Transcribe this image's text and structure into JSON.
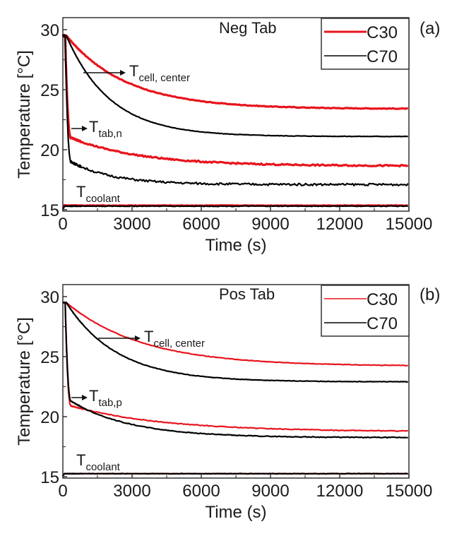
{
  "chart_data": [
    {
      "type": "line",
      "panel_label": "(a)",
      "title": "Neg Tab",
      "xlabel": "Time (s)",
      "ylabel": "Temperature [°C]",
      "xlim": [
        0,
        15000
      ],
      "ylim": [
        15,
        31
      ],
      "x_ticks": [
        0,
        3000,
        6000,
        9000,
        12000,
        15000
      ],
      "x_tick_labels": [
        "0",
        "3000",
        "6000",
        "9000",
        "12000",
        "15000"
      ],
      "y_ticks": [
        15,
        20,
        25,
        30
      ],
      "y_tick_labels": [
        "15",
        "20",
        "25",
        "30"
      ],
      "grid": false,
      "legend": {
        "placement": "top-right",
        "entries": [
          {
            "name": "C30",
            "color": "#e8141c"
          },
          {
            "name": "C70",
            "color": "#000000"
          }
        ]
      },
      "annotations": [
        {
          "text": "T",
          "sub": "cell, center",
          "points_to": "cell center curves"
        },
        {
          "text": "T",
          "sub": "tab,n",
          "points_to": "tab curves"
        },
        {
          "text": "T",
          "sub": "coolant",
          "points_to": "coolant curves"
        }
      ],
      "series": [
        {
          "name": "C30 cell center",
          "legend": "C30",
          "color": "#e8141c",
          "start": 29.5,
          "end": 23.4,
          "tau": 2600,
          "delay": 150,
          "noise": 0.03
        },
        {
          "name": "C70 cell center",
          "legend": "C70",
          "color": "#000000",
          "start": 29.5,
          "end": 21.1,
          "tau": 1900,
          "delay": 150,
          "noise": 0.02
        },
        {
          "name": "C30 tab,n",
          "legend": "C30",
          "color": "#e8141c",
          "start": 29.5,
          "drop_to": 21.0,
          "end": 18.65,
          "tau": 3000,
          "noise": 0.06
        },
        {
          "name": "C70 tab,n",
          "legend": "C70",
          "color": "#000000",
          "start": 29.5,
          "drop_to": 19.0,
          "end": 17.1,
          "tau": 1800,
          "noise": 0.09
        },
        {
          "name": "C30 coolant",
          "legend": "C30",
          "color": "#e8141c",
          "value": 15.35,
          "noise": 0.02
        },
        {
          "name": "C70 coolant",
          "legend": "C70",
          "color": "#000000",
          "value": 15.3,
          "noise": 0.03
        }
      ]
    },
    {
      "type": "line",
      "panel_label": "(b)",
      "title": "Pos Tab",
      "xlabel": "Time (s)",
      "ylabel": "Temperature [°C]",
      "xlim": [
        0,
        15000
      ],
      "ylim": [
        15,
        31
      ],
      "x_ticks": [
        0,
        3000,
        6000,
        9000,
        12000,
        15000
      ],
      "x_tick_labels": [
        "0",
        "3000",
        "6000",
        "9000",
        "12000",
        "15000"
      ],
      "y_ticks": [
        15,
        20,
        25,
        30
      ],
      "y_tick_labels": [
        "15",
        "20",
        "25",
        "30"
      ],
      "grid": false,
      "legend": {
        "placement": "top-right",
        "entries": [
          {
            "name": "C30",
            "color": "#e8141c"
          },
          {
            "name": "C70",
            "color": "#000000"
          }
        ]
      },
      "annotations": [
        {
          "text": "T",
          "sub": "cell, center",
          "points_to": "cell center curves"
        },
        {
          "text": "T",
          "sub": "tab,p",
          "points_to": "tab curves"
        },
        {
          "text": "T",
          "sub": "coolant",
          "points_to": "coolant curves"
        }
      ],
      "series": [
        {
          "name": "C30 cell center",
          "legend": "C30",
          "color": "#e8141c",
          "start": 29.5,
          "end": 24.2,
          "tau": 3300,
          "delay": 150,
          "noise": 0.02
        },
        {
          "name": "C70 cell center",
          "legend": "C70",
          "color": "#000000",
          "start": 29.5,
          "end": 22.9,
          "tau": 2200,
          "delay": 150,
          "noise": 0.02
        },
        {
          "name": "C30 tab,p",
          "legend": "C30",
          "color": "#e8141c",
          "start": 29.5,
          "drop_to": 20.9,
          "end": 18.75,
          "tau": 4000,
          "noise": 0.03
        },
        {
          "name": "C70 tab,p",
          "legend": "C70",
          "color": "#000000",
          "start": 29.5,
          "drop_to": 21.3,
          "end": 18.25,
          "tau": 2600,
          "noise": 0.03
        },
        {
          "name": "C30 coolant",
          "legend": "C30",
          "color": "#e8141c",
          "value": 15.25,
          "noise": 0.01
        },
        {
          "name": "C70 coolant",
          "legend": "C70",
          "color": "#000000",
          "value": 15.25,
          "noise": 0.02
        }
      ]
    }
  ]
}
